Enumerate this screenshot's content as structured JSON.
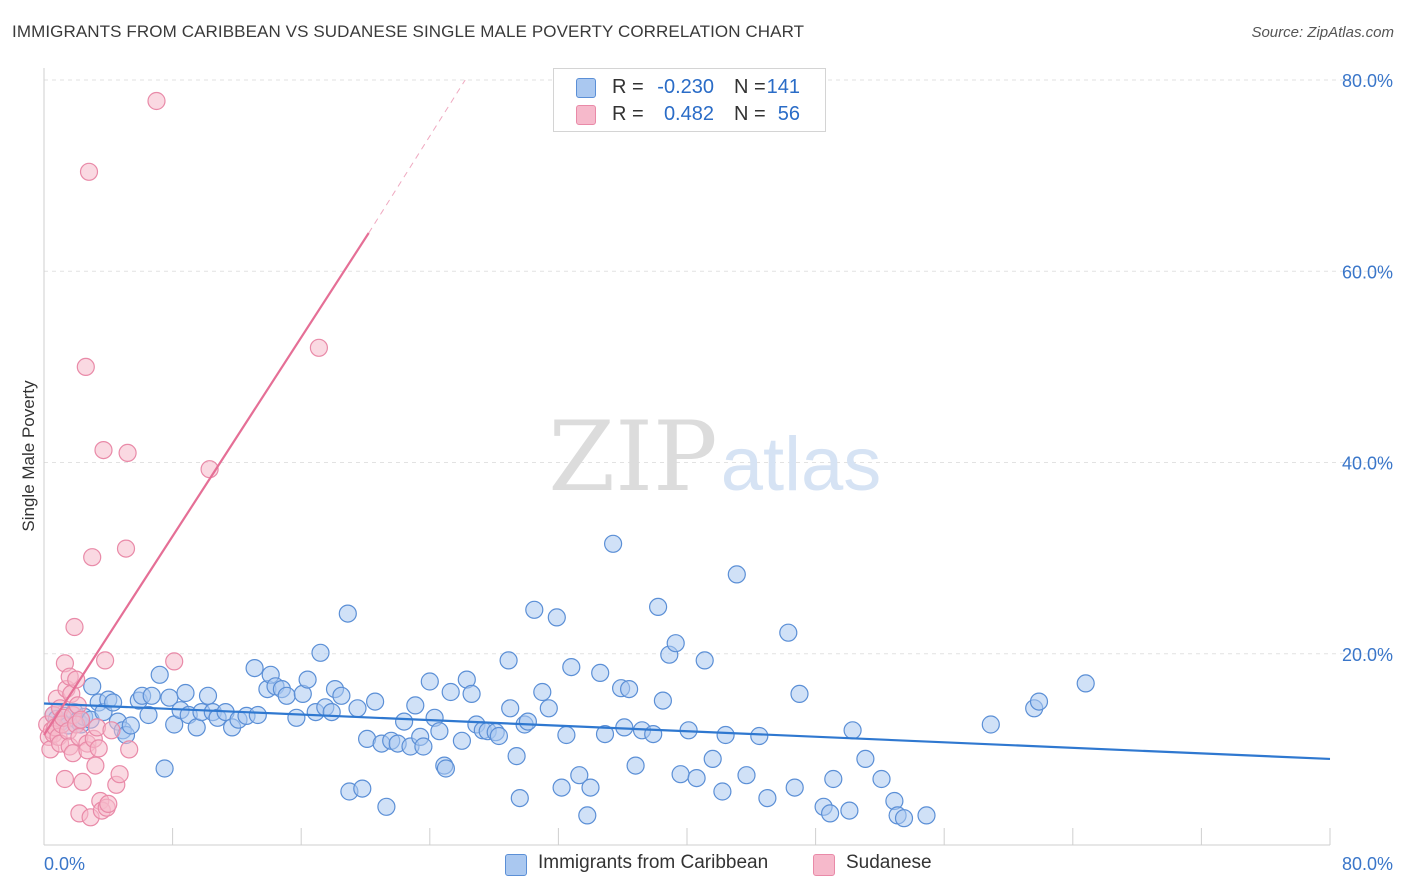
{
  "title": "IMMIGRANTS FROM CARIBBEAN VS SUDANESE SINGLE MALE POVERTY CORRELATION CHART",
  "source": "Source: ZipAtlas.com",
  "watermark": {
    "zip": "ZIP",
    "atlas": "atlas"
  },
  "legend_top": [
    {
      "r_label": "R =",
      "r_value": "-0.230",
      "n_label": "N =",
      "n_value": "141"
    },
    {
      "r_label": "R =",
      "r_value": "0.482",
      "n_label": "N =",
      "n_value": "56"
    }
  ],
  "colors": {
    "blue_fill": "#aac8f0",
    "blue_stroke": "#5b8fd6",
    "blue_line": "#2f78d0",
    "pink_fill": "#f6b9cb",
    "pink_stroke": "#e98aa8",
    "pink_line": "#e56f96",
    "tick_label": "#3a76c9",
    "grid": "#e2e2e2"
  },
  "chart_data": {
    "type": "scatter",
    "title": "IMMIGRANTS FROM CARIBBEAN VS SUDANESE SINGLE MALE POVERTY CORRELATION CHART",
    "xlabel": "",
    "ylabel": "Single Male Poverty",
    "xlim": [
      0,
      80
    ],
    "ylim": [
      0,
      80
    ],
    "x_tick_labels": [
      "0.0%",
      "80.0%"
    ],
    "y_ticks": [
      20,
      40,
      60,
      80
    ],
    "y_tick_labels": [
      "20.0%",
      "40.0%",
      "60.0%",
      "80.0%"
    ],
    "grid": true,
    "legend_position": "bottom-center",
    "series": [
      {
        "name": "Immigrants from Caribbean",
        "r": -0.23,
        "n": 141,
        "trend": {
          "x": [
            0,
            80
          ],
          "y": [
            14.8,
            9.0
          ]
        },
        "points": [
          [
            0.6,
            13.6
          ],
          [
            0.8,
            13.2
          ],
          [
            1.0,
            12.8
          ],
          [
            1.3,
            13.5
          ],
          [
            1.5,
            12.5
          ],
          [
            1.9,
            13.9
          ],
          [
            2.1,
            13.0
          ],
          [
            2.3,
            12.6
          ],
          [
            2.5,
            13.4
          ],
          [
            2.9,
            13.1
          ],
          [
            3.0,
            16.6
          ],
          [
            3.4,
            14.9
          ],
          [
            3.7,
            13.9
          ],
          [
            4.0,
            15.2
          ],
          [
            4.3,
            14.9
          ],
          [
            4.6,
            12.9
          ],
          [
            4.9,
            12.0
          ],
          [
            5.1,
            11.5
          ],
          [
            5.4,
            12.5
          ],
          [
            5.9,
            15.1
          ],
          [
            6.1,
            15.6
          ],
          [
            6.5,
            13.6
          ],
          [
            6.7,
            15.6
          ],
          [
            7.2,
            17.8
          ],
          [
            7.5,
            8.0
          ],
          [
            7.8,
            15.4
          ],
          [
            8.1,
            12.6
          ],
          [
            8.5,
            14.1
          ],
          [
            8.8,
            15.9
          ],
          [
            9.0,
            13.6
          ],
          [
            9.5,
            12.3
          ],
          [
            9.8,
            13.9
          ],
          [
            10.2,
            15.6
          ],
          [
            10.5,
            13.9
          ],
          [
            10.8,
            13.3
          ],
          [
            11.3,
            13.9
          ],
          [
            11.7,
            12.3
          ],
          [
            12.1,
            13.1
          ],
          [
            12.6,
            13.5
          ],
          [
            13.1,
            18.5
          ],
          [
            13.3,
            13.6
          ],
          [
            13.9,
            16.3
          ],
          [
            14.1,
            17.8
          ],
          [
            14.4,
            16.6
          ],
          [
            14.8,
            16.3
          ],
          [
            15.1,
            15.6
          ],
          [
            15.7,
            13.3
          ],
          [
            16.1,
            15.8
          ],
          [
            16.4,
            17.3
          ],
          [
            16.9,
            13.9
          ],
          [
            17.2,
            20.1
          ],
          [
            17.5,
            14.4
          ],
          [
            17.9,
            13.9
          ],
          [
            18.1,
            16.3
          ],
          [
            18.5,
            15.6
          ],
          [
            18.9,
            24.2
          ],
          [
            19.0,
            5.6
          ],
          [
            19.5,
            14.3
          ],
          [
            19.8,
            5.9
          ],
          [
            20.1,
            11.1
          ],
          [
            20.6,
            15.0
          ],
          [
            21.0,
            10.6
          ],
          [
            21.3,
            4.0
          ],
          [
            21.6,
            10.9
          ],
          [
            22.0,
            10.6
          ],
          [
            22.4,
            12.9
          ],
          [
            22.8,
            10.3
          ],
          [
            23.1,
            14.6
          ],
          [
            23.4,
            11.3
          ],
          [
            23.6,
            10.3
          ],
          [
            24.0,
            17.1
          ],
          [
            24.3,
            13.3
          ],
          [
            24.6,
            11.9
          ],
          [
            24.9,
            8.3
          ],
          [
            25.0,
            8.0
          ],
          [
            25.3,
            16.0
          ],
          [
            26.0,
            10.9
          ],
          [
            26.3,
            17.3
          ],
          [
            26.6,
            15.8
          ],
          [
            26.9,
            12.6
          ],
          [
            27.3,
            12.0
          ],
          [
            27.6,
            11.9
          ],
          [
            28.1,
            11.8
          ],
          [
            28.3,
            11.4
          ],
          [
            28.9,
            19.3
          ],
          [
            29.0,
            14.3
          ],
          [
            29.4,
            9.3
          ],
          [
            29.6,
            4.9
          ],
          [
            29.9,
            12.6
          ],
          [
            30.1,
            12.9
          ],
          [
            30.5,
            24.6
          ],
          [
            31.0,
            16.0
          ],
          [
            31.4,
            14.3
          ],
          [
            31.9,
            23.8
          ],
          [
            32.2,
            6.0
          ],
          [
            32.5,
            11.5
          ],
          [
            32.8,
            18.6
          ],
          [
            33.3,
            7.3
          ],
          [
            33.8,
            3.1
          ],
          [
            34.0,
            6.0
          ],
          [
            34.6,
            18.0
          ],
          [
            34.9,
            11.6
          ],
          [
            35.4,
            31.5
          ],
          [
            35.9,
            16.4
          ],
          [
            36.1,
            12.3
          ],
          [
            36.4,
            16.3
          ],
          [
            36.8,
            8.3
          ],
          [
            37.2,
            12.0
          ],
          [
            37.9,
            11.6
          ],
          [
            38.2,
            24.9
          ],
          [
            38.5,
            15.1
          ],
          [
            38.9,
            19.9
          ],
          [
            39.3,
            21.1
          ],
          [
            39.6,
            7.4
          ],
          [
            40.1,
            12.0
          ],
          [
            40.6,
            7.0
          ],
          [
            41.1,
            19.3
          ],
          [
            41.6,
            9.0
          ],
          [
            42.2,
            5.6
          ],
          [
            42.4,
            11.5
          ],
          [
            43.1,
            28.3
          ],
          [
            43.7,
            7.3
          ],
          [
            44.5,
            11.4
          ],
          [
            45.0,
            4.9
          ],
          [
            46.3,
            22.2
          ],
          [
            46.7,
            6.0
          ],
          [
            47.0,
            15.8
          ],
          [
            48.5,
            4.0
          ],
          [
            48.9,
            3.3
          ],
          [
            49.1,
            6.9
          ],
          [
            50.1,
            3.6
          ],
          [
            50.3,
            12.0
          ],
          [
            51.1,
            9.0
          ],
          [
            52.1,
            6.9
          ],
          [
            52.9,
            4.6
          ],
          [
            53.1,
            3.1
          ],
          [
            53.5,
            2.8
          ],
          [
            54.9,
            3.1
          ],
          [
            58.9,
            12.6
          ],
          [
            61.6,
            14.3
          ],
          [
            61.9,
            15.0
          ],
          [
            64.8,
            16.9
          ]
        ]
      },
      {
        "name": "Sudanese",
        "r": 0.482,
        "n": 56,
        "trend": {
          "x": [
            0,
            20.2
          ],
          "y": [
            11.5,
            64.0
          ]
        },
        "trend_dashed": {
          "x": [
            20.2,
            26.2
          ],
          "y": [
            64.0,
            80.0
          ]
        },
        "points": [
          [
            0.2,
            12.6
          ],
          [
            0.3,
            11.3
          ],
          [
            0.4,
            10.0
          ],
          [
            0.5,
            12.0
          ],
          [
            0.6,
            11.6
          ],
          [
            0.6,
            13.6
          ],
          [
            0.7,
            12.3
          ],
          [
            0.8,
            15.3
          ],
          [
            0.9,
            11.3
          ],
          [
            1.0,
            10.6
          ],
          [
            1.0,
            14.3
          ],
          [
            1.1,
            12.6
          ],
          [
            1.2,
            13.3
          ],
          [
            1.3,
            6.9
          ],
          [
            1.3,
            19.0
          ],
          [
            1.4,
            16.3
          ],
          [
            1.5,
            11.9
          ],
          [
            1.6,
            17.6
          ],
          [
            1.6,
            10.3
          ],
          [
            1.7,
            15.8
          ],
          [
            1.8,
            13.6
          ],
          [
            1.8,
            9.6
          ],
          [
            1.9,
            22.8
          ],
          [
            2.0,
            17.3
          ],
          [
            2.0,
            12.6
          ],
          [
            2.1,
            14.6
          ],
          [
            2.2,
            3.3
          ],
          [
            2.2,
            11.3
          ],
          [
            2.3,
            13.1
          ],
          [
            2.4,
            6.6
          ],
          [
            2.6,
            50.0
          ],
          [
            2.7,
            10.6
          ],
          [
            2.7,
            9.9
          ],
          [
            2.8,
            70.4
          ],
          [
            2.9,
            2.9
          ],
          [
            3.0,
            30.1
          ],
          [
            3.1,
            11.1
          ],
          [
            3.2,
            8.3
          ],
          [
            3.3,
            12.3
          ],
          [
            3.4,
            10.1
          ],
          [
            3.5,
            4.6
          ],
          [
            3.6,
            3.6
          ],
          [
            3.7,
            41.3
          ],
          [
            3.8,
            19.3
          ],
          [
            3.9,
            3.9
          ],
          [
            4.0,
            4.3
          ],
          [
            4.2,
            12.0
          ],
          [
            4.5,
            6.3
          ],
          [
            4.7,
            7.4
          ],
          [
            5.1,
            31.0
          ],
          [
            5.2,
            41.0
          ],
          [
            5.3,
            10.0
          ],
          [
            7.0,
            77.8
          ],
          [
            8.1,
            19.2
          ],
          [
            10.3,
            39.3
          ],
          [
            17.1,
            52.0
          ]
        ]
      }
    ]
  }
}
